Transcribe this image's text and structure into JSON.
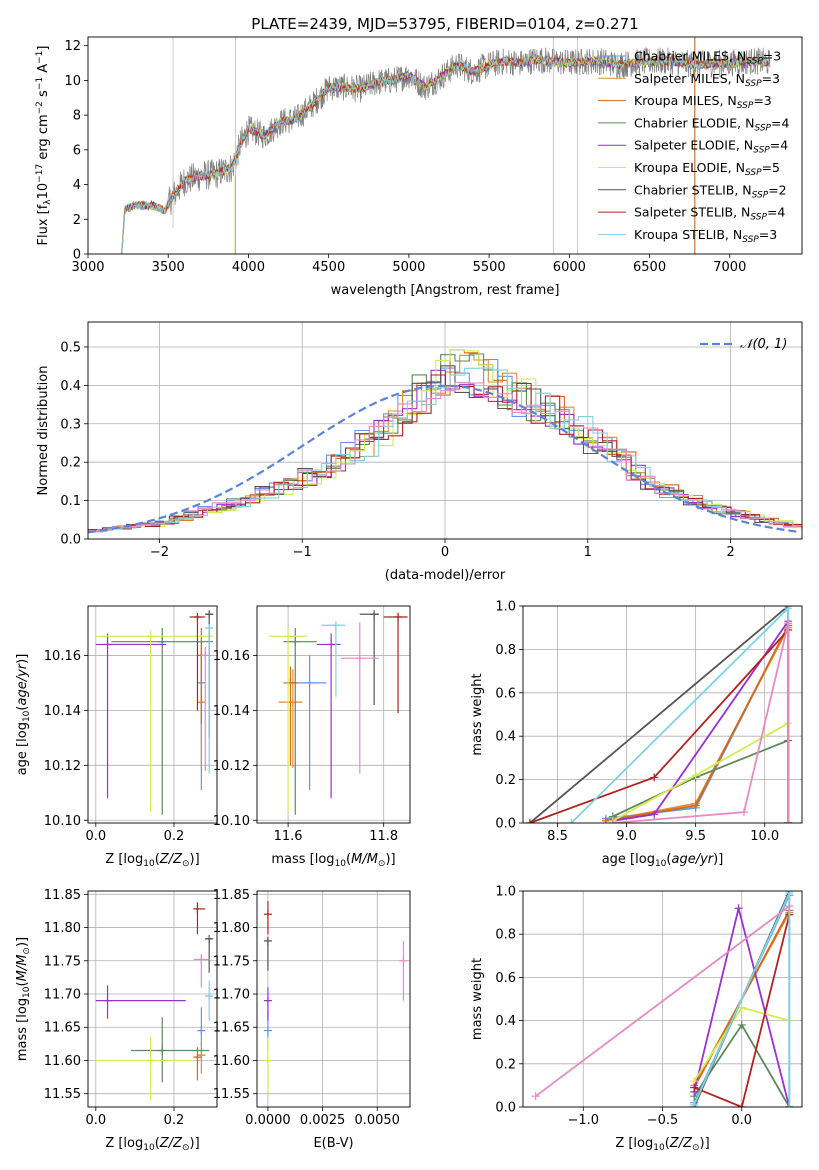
{
  "figure_title": "PLATE=2439, MJD=53795, FIBERID=0104, z=0.271",
  "models": [
    {
      "name": "Chabrier MILES",
      "nssp": "3",
      "color": "#6495ed"
    },
    {
      "name": "Salpeter MILES",
      "nssp": "3",
      "color": "#e68a2e"
    },
    {
      "name": "Kroupa MILES",
      "nssp": "3",
      "color": "#d2691e"
    },
    {
      "name": "Chabrier ELODIE",
      "nssp": "4",
      "color": "#5b8a5b"
    },
    {
      "name": "Salpeter ELODIE",
      "nssp": "4",
      "color": "#9932cc"
    },
    {
      "name": "Kroupa ELODIE",
      "nssp": "5",
      "color": "#d4ec50"
    },
    {
      "name": "Chabrier STELIB",
      "nssp": "2",
      "color": "#555555"
    },
    {
      "name": "Salpeter STELIB",
      "nssp": "4",
      "color": "#b22222"
    },
    {
      "name": "Kroupa STELIB",
      "nssp": "3",
      "color": "#7fd3e0"
    },
    {
      "name": "",
      "nssp": "",
      "color": "#e78ac3"
    }
  ],
  "chart_data": [
    {
      "id": "spectrum",
      "type": "line",
      "title": "PLATE=2439, MJD=53795, FIBERID=0104, z=0.271",
      "xlabel": "wavelength [Angstrom, rest frame]",
      "ylabel": "Flux [f_λ 10^-17 erg cm^-2 s^-1 A^-1]",
      "xlim": [
        3000,
        7450
      ],
      "ylim": [
        0,
        12.5
      ],
      "xticks": [
        3000,
        3500,
        4000,
        4500,
        5000,
        5500,
        6000,
        6500,
        7000
      ],
      "yticks": [
        0,
        2,
        4,
        6,
        8,
        10,
        12
      ],
      "grid": false,
      "legend": "top-right",
      "observed_continuum": {
        "x": [
          3210,
          3230,
          3300,
          3400,
          3480,
          3520,
          3600,
          3700,
          3800,
          3900,
          3950,
          4000,
          4100,
          4200,
          4300,
          4400,
          4500,
          4600,
          4700,
          4800,
          4900,
          5000,
          5100,
          5200,
          5300,
          5400,
          5500,
          5600,
          5700,
          5800,
          5900,
          6000,
          6100,
          6200,
          6300,
          6400,
          6500,
          6600,
          6700,
          6800,
          6900,
          7000,
          7100,
          7200,
          7250
        ],
        "y": [
          0,
          2.6,
          2.8,
          2.8,
          2.5,
          3.2,
          4.2,
          4.5,
          4.6,
          5.0,
          6.3,
          7.2,
          6.8,
          7.6,
          7.8,
          8.6,
          9.6,
          9.6,
          9.5,
          9.9,
          10.0,
          10.3,
          9.6,
          10.2,
          10.9,
          10.5,
          10.9,
          11.1,
          11.0,
          11.2,
          11.1,
          11.0,
          11.1,
          11.1,
          10.9,
          11.0,
          11.1,
          11.1,
          11.0,
          10.9,
          11.0,
          11.0,
          11.1,
          11.1,
          11.0
        ]
      },
      "series": [
        {
          "name": "Chabrier MILES, N_SSP=3"
        },
        {
          "name": "Salpeter MILES, N_SSP=3"
        },
        {
          "name": "Kroupa MILES, N_SSP=3"
        },
        {
          "name": "Chabrier ELODIE, N_SSP=4"
        },
        {
          "name": "Salpeter ELODIE, N_SSP=4"
        },
        {
          "name": "Kroupa ELODIE, N_SSP=5"
        },
        {
          "name": "Chabrier STELIB, N_SSP=2"
        },
        {
          "name": "Salpeter STELIB, N_SSP=4"
        },
        {
          "name": "Kroupa STELIB, N_SSP=3"
        }
      ]
    },
    {
      "id": "residuals",
      "type": "line",
      "xlabel": "(data-model)/error",
      "ylabel": "Normed distribution",
      "xlim": [
        -2.5,
        2.5
      ],
      "ylim": [
        0,
        0.565
      ],
      "xticks": [
        -2,
        -1,
        0,
        1,
        2
      ],
      "yticks": [
        0.0,
        0.1,
        0.2,
        0.3,
        0.4,
        0.5
      ],
      "grid": true,
      "legend": "top-right",
      "reference_label": "𝒩(0, 1)",
      "histogram_envelope": {
        "x": [
          -2.5,
          -2.0,
          -1.5,
          -1.0,
          -0.5,
          -0.3,
          0.0,
          0.15,
          0.3,
          0.6,
          0.8,
          1.0,
          1.2,
          1.5,
          2.0,
          2.5
        ],
        "y": [
          0.02,
          0.04,
          0.09,
          0.15,
          0.26,
          0.33,
          0.43,
          0.44,
          0.42,
          0.36,
          0.32,
          0.27,
          0.22,
          0.13,
          0.07,
          0.03
        ]
      }
    },
    {
      "id": "age-vs-Z",
      "type": "scatter",
      "xlabel": "Z [log10(Z/Z☉)]",
      "ylabel": "age [log10(age/yr)]",
      "xlim": [
        -0.02,
        0.31
      ],
      "ylim": [
        10.099,
        10.178
      ],
      "xticks": [
        0.0,
        0.2
      ],
      "yticks": [
        10.1,
        10.12,
        10.14,
        10.16
      ],
      "grid": true,
      "points": [
        {
          "model": 0,
          "x": 0.27,
          "y": 10.15,
          "xerr": [
            0.26,
            0.28
          ],
          "yerr": [
            10.111,
            10.16
          ]
        },
        {
          "model": 1,
          "x": 0.27,
          "y": 10.143,
          "xerr": [
            0.26,
            0.28
          ],
          "yerr": [
            10.119,
            10.165
          ]
        },
        {
          "model": 2,
          "x": 0.27,
          "y": 10.16,
          "xerr": [
            0.26,
            0.28
          ],
          "yerr": [
            10.135,
            10.17
          ]
        },
        {
          "model": 3,
          "x": 0.17,
          "y": 10.165,
          "xerr": [
            0.04,
            0.3
          ],
          "yerr": [
            10.102,
            10.17
          ]
        },
        {
          "model": 4,
          "x": 0.03,
          "y": 10.164,
          "xerr": [
            0.0,
            0.18
          ],
          "yerr": [
            10.108,
            10.168
          ]
        },
        {
          "model": 5,
          "x": 0.14,
          "y": 10.167,
          "xerr": [
            0.0,
            0.3
          ],
          "yerr": [
            10.103,
            10.169
          ]
        },
        {
          "model": 6,
          "x": 0.29,
          "y": 10.175,
          "xerr": [
            0.28,
            0.3
          ],
          "yerr": [
            10.13,
            10.175
          ]
        },
        {
          "model": 7,
          "x": 0.26,
          "y": 10.174,
          "xerr": [
            0.24,
            0.28
          ],
          "yerr": [
            10.14,
            10.175
          ]
        },
        {
          "model": 8,
          "x": 0.29,
          "y": 10.17,
          "xerr": [
            0.28,
            0.3
          ],
          "yerr": [
            10.117,
            10.171
          ]
        },
        {
          "model": 9,
          "x": 0.28,
          "y": 10.16,
          "xerr": [
            0.27,
            0.29
          ],
          "yerr": [
            10.118,
            10.163
          ]
        }
      ]
    },
    {
      "id": "age-vs-mass",
      "type": "scatter",
      "xlabel": "mass [log10(M/M☉)]",
      "ylabel": "",
      "xlim": [
        11.535,
        11.855
      ],
      "ylim": [
        10.099,
        10.178
      ],
      "xticks": [
        11.6,
        11.8
      ],
      "yticks": [
        10.1,
        10.12,
        10.14,
        10.16
      ],
      "grid": true,
      "points": [
        {
          "model": 0,
          "x": 11.645,
          "y": 10.15,
          "xerr": [
            11.61,
            11.68
          ],
          "yerr": [
            10.111,
            10.16
          ]
        },
        {
          "model": 1,
          "x": 11.61,
          "y": 10.143,
          "xerr": [
            11.58,
            11.63
          ],
          "yerr": [
            10.119,
            10.155
          ]
        },
        {
          "model": 2,
          "x": 11.605,
          "y": 10.15,
          "xerr": [
            11.59,
            11.62
          ],
          "yerr": [
            10.12,
            10.156
          ]
        },
        {
          "model": 3,
          "x": 11.615,
          "y": 10.165,
          "xerr": [
            11.59,
            11.66
          ],
          "yerr": [
            10.102,
            10.17
          ]
        },
        {
          "model": 4,
          "x": 11.69,
          "y": 10.164,
          "xerr": [
            11.66,
            11.71
          ],
          "yerr": [
            10.108,
            10.168
          ]
        },
        {
          "model": 5,
          "x": 11.6,
          "y": 10.167,
          "xerr": [
            11.56,
            11.64
          ],
          "yerr": [
            10.103,
            10.17
          ]
        },
        {
          "model": 6,
          "x": 11.78,
          "y": 10.175,
          "xerr": [
            11.75,
            11.79
          ],
          "yerr": [
            10.142,
            10.175
          ]
        },
        {
          "model": 7,
          "x": 11.83,
          "y": 10.174,
          "xerr": [
            11.8,
            11.85
          ],
          "yerr": [
            10.139,
            10.175
          ]
        },
        {
          "model": 8,
          "x": 11.7,
          "y": 10.171,
          "xerr": [
            11.67,
            11.72
          ],
          "yerr": [
            10.145,
            10.172
          ]
        },
        {
          "model": 9,
          "x": 11.75,
          "y": 10.159,
          "xerr": [
            11.71,
            11.79
          ],
          "yerr": [
            10.117,
            10.172
          ]
        }
      ]
    },
    {
      "id": "massweight-vs-age",
      "type": "line",
      "xlabel": "age [log10(age/yr)]",
      "ylabel": "mass weight",
      "xlim": [
        8.25,
        10.27
      ],
      "ylim": [
        0,
        1.0
      ],
      "xticks": [
        8.5,
        9.0,
        9.5,
        10.0
      ],
      "yticks": [
        0.0,
        0.2,
        0.4,
        0.6,
        0.8,
        1.0
      ],
      "grid": true,
      "series": [
        {
          "model": 0,
          "x": [
            8.85,
            9.5,
            10.17
          ],
          "y": [
            0.02,
            0.07,
            0.91
          ]
        },
        {
          "model": 1,
          "x": [
            8.85,
            9.5,
            10.17
          ],
          "y": [
            0.01,
            0.09,
            0.9
          ]
        },
        {
          "model": 2,
          "x": [
            8.85,
            9.5,
            10.17
          ],
          "y": [
            0.01,
            0.08,
            0.91
          ]
        },
        {
          "model": 3,
          "x": [
            8.9,
            9.5,
            10.17,
            10.17
          ],
          "y": [
            0.03,
            0.21,
            0.38,
            0.0
          ]
        },
        {
          "model": 4,
          "x": [
            8.9,
            9.2,
            10.17,
            10.17
          ],
          "y": [
            0.01,
            0.04,
            0.93,
            0.0
          ]
        },
        {
          "model": 5,
          "x": [
            8.9,
            9.5,
            10.17,
            10.17
          ],
          "y": [
            0.01,
            0.22,
            0.46,
            0.0
          ]
        },
        {
          "model": 6,
          "x": [
            8.3,
            10.17,
            10.17
          ],
          "y": [
            0.0,
            1.0,
            0.0
          ]
        },
        {
          "model": 7,
          "x": [
            8.3,
            9.2,
            10.17,
            10.17
          ],
          "y": [
            0.0,
            0.21,
            0.89,
            0.0
          ]
        },
        {
          "model": 8,
          "x": [
            8.6,
            10.17,
            10.17
          ],
          "y": [
            0.0,
            0.99,
            0.0
          ]
        },
        {
          "model": 9,
          "x": [
            8.9,
            9.85,
            10.17,
            10.17
          ],
          "y": [
            0.0,
            0.05,
            0.92,
            0.0
          ]
        }
      ]
    },
    {
      "id": "mass-vs-Z",
      "type": "scatter",
      "xlabel": "Z [log10(Z/Z☉)]",
      "ylabel": "mass [log10(M/M☉)]",
      "xlim": [
        -0.02,
        0.31
      ],
      "ylim": [
        11.53,
        11.855
      ],
      "xticks": [
        0.0,
        0.2
      ],
      "yticks": [
        11.55,
        11.6,
        11.65,
        11.7,
        11.75,
        11.8,
        11.85
      ],
      "grid": true,
      "points": [
        {
          "model": 0,
          "x": 0.27,
          "y": 11.645,
          "xerr": [
            0.26,
            0.28
          ],
          "yerr": [
            11.62,
            11.68
          ]
        },
        {
          "model": 1,
          "x": 0.27,
          "y": 11.608,
          "xerr": [
            0.26,
            0.28
          ],
          "yerr": [
            11.58,
            11.63
          ]
        },
        {
          "model": 2,
          "x": 0.26,
          "y": 11.605,
          "xerr": [
            0.25,
            0.27
          ],
          "yerr": [
            11.57,
            11.62
          ]
        },
        {
          "model": 3,
          "x": 0.17,
          "y": 11.615,
          "xerr": [
            0.09,
            0.29
          ],
          "yerr": [
            11.567,
            11.665
          ]
        },
        {
          "model": 4,
          "x": 0.03,
          "y": 11.69,
          "xerr": [
            0.0,
            0.23
          ],
          "yerr": [
            11.663,
            11.713
          ]
        },
        {
          "model": 5,
          "x": 0.14,
          "y": 11.6,
          "xerr": [
            0.0,
            0.25
          ],
          "yerr": [
            11.54,
            11.635
          ]
        },
        {
          "model": 6,
          "x": 0.29,
          "y": 11.783,
          "xerr": [
            0.28,
            0.3
          ],
          "yerr": [
            11.732,
            11.783
          ]
        },
        {
          "model": 7,
          "x": 0.26,
          "y": 11.828,
          "xerr": [
            0.25,
            0.28
          ],
          "yerr": [
            11.79,
            11.838
          ]
        },
        {
          "model": 8,
          "x": 0.29,
          "y": 11.697,
          "xerr": [
            0.28,
            0.3
          ],
          "yerr": [
            11.66,
            11.72
          ]
        },
        {
          "model": 9,
          "x": 0.27,
          "y": 11.752,
          "xerr": [
            0.25,
            0.29
          ],
          "yerr": [
            11.71,
            11.76
          ]
        }
      ]
    },
    {
      "id": "mass-vs-ebv",
      "type": "scatter",
      "xlabel": "E(B-V)",
      "ylabel": "",
      "xlim": [
        -0.0005,
        0.0065
      ],
      "ylim": [
        11.53,
        11.855
      ],
      "xticks": [
        0.0,
        0.0025,
        0.005
      ],
      "xticklabels": [
        "0.0000",
        "0.0025",
        "0.0050"
      ],
      "yticks": [
        11.55,
        11.6,
        11.65,
        11.7,
        11.75,
        11.8,
        11.85
      ],
      "grid": true,
      "points": [
        {
          "model": 0,
          "x": 0.0,
          "y": 11.645,
          "xerr": [
            0.0,
            0.0
          ],
          "yerr": [
            11.615,
            11.675
          ]
        },
        {
          "model": 4,
          "x": 0.0,
          "y": 11.69,
          "xerr": [
            0.0,
            0.0
          ],
          "yerr": [
            11.66,
            11.71
          ]
        },
        {
          "model": 5,
          "x": 0.0,
          "y": 11.6,
          "xerr": [
            0.0,
            0.0
          ],
          "yerr": [
            11.55,
            11.635
          ]
        },
        {
          "model": 6,
          "x": 0.0,
          "y": 11.78,
          "xerr": [
            0.0,
            0.0
          ],
          "yerr": [
            11.735,
            11.785
          ]
        },
        {
          "model": 7,
          "x": 0.0,
          "y": 11.82,
          "xerr": [
            0.0,
            0.0
          ],
          "yerr": [
            11.79,
            11.84
          ]
        },
        {
          "model": 9,
          "x": 0.0062,
          "y": 11.75,
          "xerr": [
            0.0062,
            0.0062
          ],
          "yerr": [
            11.69,
            11.78
          ]
        }
      ]
    },
    {
      "id": "massweight-vs-Z",
      "type": "line",
      "xlabel": "Z [log10(Z/Z☉)]",
      "ylabel": "mass weight",
      "xlim": [
        -1.38,
        0.38
      ],
      "ylim": [
        0,
        1.0
      ],
      "xticks": [
        -1.0,
        -0.5,
        0.0
      ],
      "yticks": [
        0.0,
        0.2,
        0.4,
        0.6,
        0.8,
        1.0
      ],
      "grid": true,
      "series": [
        {
          "model": 0,
          "x": [
            -0.3,
            0.3,
            0.3
          ],
          "y": [
            0.02,
            0.98,
            0.0
          ]
        },
        {
          "model": 1,
          "x": [
            -0.3,
            0.3
          ],
          "y": [
            0.1,
            0.9
          ]
        },
        {
          "model": 2,
          "x": [
            -0.3,
            0.3
          ],
          "y": [
            0.09,
            0.91
          ]
        },
        {
          "model": 3,
          "x": [
            -0.3,
            0.0,
            0.3
          ],
          "y": [
            0.05,
            0.38,
            0.0
          ]
        },
        {
          "model": 4,
          "x": [
            -0.3,
            -0.02,
            0.3
          ],
          "y": [
            0.07,
            0.92,
            0.0
          ]
        },
        {
          "model": 5,
          "x": [
            -0.3,
            0.0,
            0.3
          ],
          "y": [
            0.12,
            0.46,
            0.4
          ]
        },
        {
          "model": 6,
          "x": [
            -0.3,
            0.3
          ],
          "y": [
            0.0,
            1.0
          ]
        },
        {
          "model": 7,
          "x": [
            -0.3,
            0.0,
            0.3
          ],
          "y": [
            0.09,
            0.0,
            0.89
          ]
        },
        {
          "model": 8,
          "x": [
            -0.3,
            0.3,
            0.3
          ],
          "y": [
            0.01,
            0.99,
            0.0
          ]
        },
        {
          "model": 9,
          "x": [
            -1.3,
            0.3
          ],
          "y": [
            0.05,
            0.93
          ]
        }
      ]
    }
  ]
}
